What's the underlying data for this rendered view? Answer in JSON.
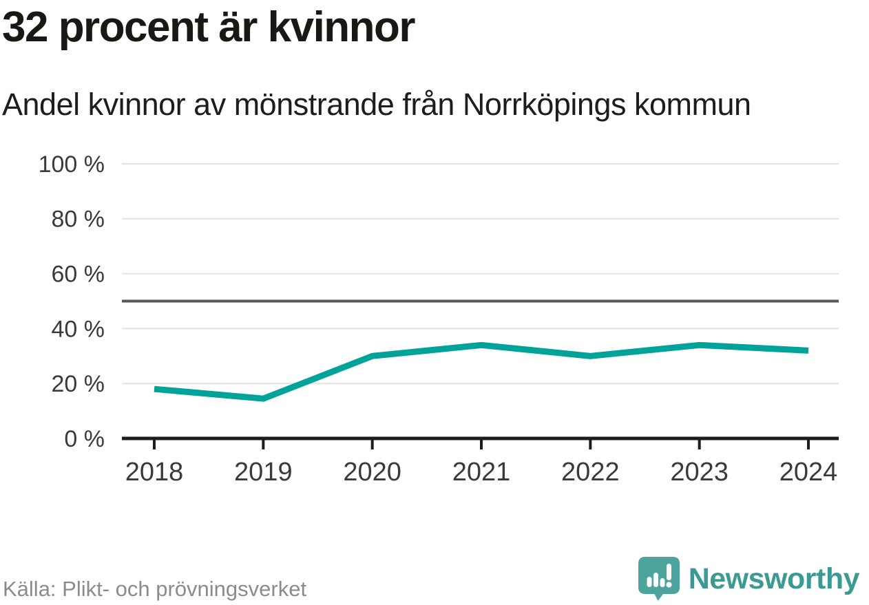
{
  "header": {
    "title": "32 procent är kvinnor",
    "subtitle": "Andel kvinnor av mönstrande från Norrköpings kommun"
  },
  "footer": {
    "source": "Källa: Plikt- och prövningsverket",
    "brand_name": "Newsworthy",
    "brand_icon": "newsworthy-bubble-chart-icon"
  },
  "colors": {
    "line": "#00a39a",
    "grid": "#e2e2e2",
    "reference_line": "#55555c",
    "axis": "#1d1d1b",
    "tick_label": "#3a3a3a",
    "title_text": "#181815",
    "source_text": "#8b8b8b",
    "brand_teal": "#3b9a92",
    "logo_bubble": "#4ca49d"
  },
  "chart_data": {
    "type": "line",
    "title": "32 procent är kvinnor",
    "subtitle": "Andel kvinnor av mönstrande från Norrköpings kommun",
    "x": [
      2018,
      2019,
      2020,
      2021,
      2022,
      2023,
      2024
    ],
    "series": [
      {
        "name": "Andel kvinnor av mönstrande",
        "values": [
          18,
          14.5,
          30,
          34,
          30,
          34,
          32
        ]
      }
    ],
    "xlabel": "",
    "ylabel": "",
    "ylim": [
      0,
      100
    ],
    "yticks": [
      0,
      20,
      40,
      60,
      80,
      100
    ],
    "ytick_format": "{v} %",
    "reference_line": 50,
    "grid": "horizontal",
    "legend": "none",
    "line_color": "#00a39a"
  }
}
